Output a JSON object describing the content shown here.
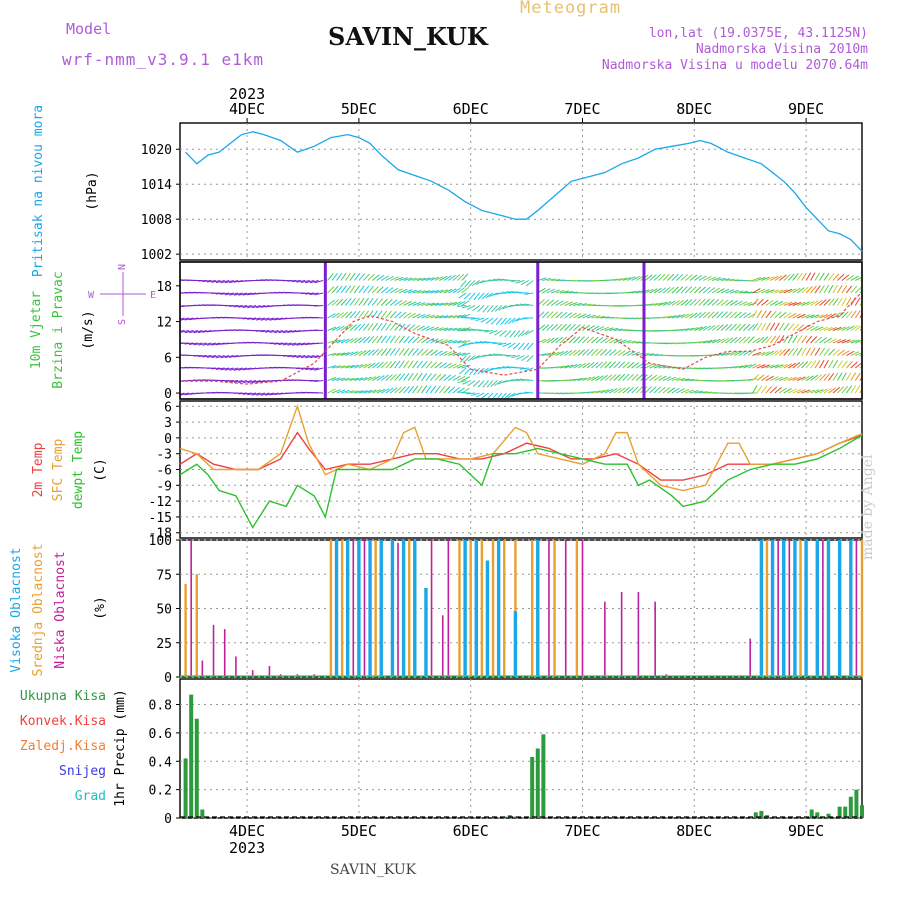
{
  "header": {
    "model_label": "Model",
    "model_name": "wrf-nmm_v3.9.1  e1km",
    "station": "SAVIN_KUK",
    "title": "Meteogram",
    "coords": "lon,lat (19.0375E, 43.1125N)",
    "elevation": "Nadmorska Visina 2010m",
    "model_elevation": "Nadmorska Visina u modelu 2070.64m"
  },
  "footer": {
    "station": "SAVIN_KUK",
    "watermark": "made by Angel"
  },
  "colors": {
    "pressure": "#1aa7e8",
    "wind_label": "#3ec23e",
    "temp2m": "#ef4040",
    "sfc_temp": "#e8a030",
    "dewpt": "#2ec02e",
    "high_cloud": "#1aa7e8",
    "mid_cloud": "#e8a030",
    "low_cloud": "#c0209a",
    "total_precip": "#2e9a3e",
    "conv_precip": "#ef4040",
    "frozen_precip": "#f08030",
    "snow": "#3a3ae0",
    "hail": "#20c0c0",
    "wind_purple": "#7a1fd0",
    "text_purple": "#b05ad8"
  },
  "chart_data": [
    {
      "type": "line",
      "panel": "pressure",
      "title_labels": [
        "Pritisak na nivou mora",
        "(hPa)"
      ],
      "x_ticks_top": [
        "4DEC",
        "5DEC",
        "6DEC",
        "7DEC",
        "8DEC",
        "9DEC"
      ],
      "year": "2023",
      "xlim": [
        -0.6,
        5.5
      ],
      "ylim": [
        1001,
        1024.5
      ],
      "yticks": [
        1002,
        1008,
        1014,
        1020
      ],
      "grid": true,
      "series": [
        {
          "x": [
            -0.55,
            -0.45,
            -0.35,
            -0.25,
            -0.15,
            -0.05,
            0.05,
            0.15,
            0.3,
            0.45,
            0.6,
            0.75,
            0.9,
            1.0,
            1.1,
            1.2,
            1.35,
            1.5,
            1.65,
            1.8,
            1.95,
            2.1,
            2.2,
            2.3,
            2.4,
            2.5,
            2.6,
            2.75,
            2.9,
            3.0,
            3.1,
            3.2,
            3.35,
            3.5,
            3.65,
            3.8,
            3.95,
            4.05,
            4.15,
            4.3,
            4.45,
            4.6,
            4.7,
            4.8,
            4.9,
            5.0,
            5.1,
            5.2,
            5.3,
            5.4,
            5.5
          ],
          "y": [
            1019.5,
            1017.5,
            1019.0,
            1019.5,
            1021.0,
            1022.5,
            1023.0,
            1022.5,
            1021.5,
            1019.5,
            1020.5,
            1022.0,
            1022.5,
            1022.0,
            1021.0,
            1019.0,
            1016.5,
            1015.5,
            1014.5,
            1013.0,
            1011.0,
            1009.5,
            1009.0,
            1008.5,
            1008.0,
            1008.0,
            1009.5,
            1012.0,
            1014.5,
            1015.0,
            1015.5,
            1016.0,
            1017.5,
            1018.5,
            1020.0,
            1020.5,
            1021.0,
            1021.5,
            1021.0,
            1019.5,
            1018.5,
            1017.5,
            1016.0,
            1014.5,
            1012.5,
            1010.0,
            1008.0,
            1006.0,
            1005.5,
            1004.5,
            1002.5
          ]
        }
      ]
    },
    {
      "type": "line",
      "panel": "wind",
      "title_labels": [
        "10m Vjetar",
        "Brzina i Pravac",
        "(m/s)"
      ],
      "compass": [
        "N",
        "W",
        "E",
        "S"
      ],
      "ylim": [
        -1,
        22
      ],
      "yticks": [
        0,
        6,
        12,
        18
      ],
      "grid": true,
      "series": [
        {
          "name": "speed",
          "x": [
            -0.6,
            -0.3,
            0,
            0.3,
            0.6,
            0.8,
            0.95,
            1.1,
            1.3,
            1.5,
            1.8,
            2.0,
            2.3,
            2.6,
            2.8,
            3.0,
            3.3,
            3.6,
            3.9,
            4.1,
            4.3,
            4.5,
            4.7,
            4.9,
            5.1,
            5.3,
            5.5
          ],
          "y": [
            2,
            2,
            1.5,
            2,
            5,
            9,
            12,
            13,
            12,
            10,
            8,
            4,
            3,
            4,
            8,
            11,
            9,
            5,
            4,
            6,
            7,
            7,
            8,
            10,
            12,
            13,
            17
          ]
        }
      ]
    },
    {
      "type": "line",
      "panel": "temperature",
      "title_labels": [
        "2m Temp",
        "SFC Temp",
        "dewpt Temp",
        "(C)"
      ],
      "ylim": [
        -19,
        7
      ],
      "yticks": [
        6,
        3,
        0,
        -3,
        -6,
        -9,
        -12,
        -15,
        -18
      ],
      "grid": true,
      "series": [
        {
          "name": "2m Temp",
          "x": [
            -0.6,
            -0.45,
            -0.3,
            -0.1,
            0.1,
            0.3,
            0.45,
            0.55,
            0.7,
            0.9,
            1.1,
            1.3,
            1.5,
            1.7,
            1.9,
            2.1,
            2.3,
            2.5,
            2.7,
            2.9,
            3.1,
            3.3,
            3.5,
            3.7,
            3.9,
            4.1,
            4.3,
            4.5,
            4.7,
            4.9,
            5.1,
            5.3,
            5.5
          ],
          "y": [
            -5,
            -3,
            -5,
            -6,
            -6,
            -4,
            1,
            -2,
            -6,
            -5,
            -5,
            -4,
            -3,
            -3,
            -4,
            -4,
            -3,
            -1,
            -2,
            -4,
            -4,
            -3,
            -5,
            -8,
            -8,
            -7,
            -5,
            -5,
            -5,
            -4,
            -3,
            -1,
            0.5
          ]
        },
        {
          "name": "SFC Temp",
          "x": [
            -0.6,
            -0.45,
            -0.3,
            -0.1,
            0.1,
            0.3,
            0.45,
            0.55,
            0.7,
            0.9,
            1.1,
            1.3,
            1.4,
            1.5,
            1.6,
            1.8,
            2.0,
            2.2,
            2.4,
            2.5,
            2.6,
            2.8,
            3.0,
            3.2,
            3.3,
            3.4,
            3.5,
            3.7,
            3.9,
            4.1,
            4.3,
            4.4,
            4.5,
            4.7,
            4.9,
            5.1,
            5.3,
            5.5
          ],
          "y": [
            -2,
            -3,
            -6,
            -6,
            -6,
            -3,
            6,
            -1,
            -7,
            -5,
            -6,
            -4,
            1,
            2,
            -4,
            -4,
            -4,
            -3,
            2,
            1,
            -3,
            -4,
            -5,
            -3,
            1,
            1,
            -5,
            -9,
            -10,
            -9,
            -1,
            -1,
            -5,
            -5,
            -4,
            -3,
            -1,
            0.8
          ]
        },
        {
          "name": "dewpt Temp",
          "x": [
            -0.6,
            -0.45,
            -0.35,
            -0.25,
            -0.1,
            0.0,
            0.05,
            0.2,
            0.35,
            0.45,
            0.6,
            0.7,
            0.8,
            0.95,
            1.1,
            1.3,
            1.5,
            1.7,
            1.9,
            2.0,
            2.1,
            2.2,
            2.4,
            2.6,
            2.8,
            3.0,
            3.2,
            3.4,
            3.5,
            3.6,
            3.8,
            3.9,
            4.1,
            4.3,
            4.5,
            4.7,
            4.9,
            5.1,
            5.3,
            5.5
          ],
          "y": [
            -7,
            -5,
            -7,
            -10,
            -11,
            -15,
            -17,
            -12,
            -13,
            -9,
            -11,
            -15,
            -6,
            -6,
            -6,
            -6,
            -4,
            -4,
            -5,
            -7,
            -9,
            -3,
            -3,
            -2,
            -3,
            -4,
            -5,
            -5,
            -9,
            -8,
            -11,
            -13,
            -12,
            -8,
            -6,
            -5,
            -5,
            -4,
            -2,
            0.5
          ]
        }
      ]
    },
    {
      "type": "bar",
      "panel": "clouds",
      "title_labels": [
        "Visoka Oblacnost",
        "Srednja Oblacnost",
        "Niska Oblacnost",
        "(%)"
      ],
      "ylim": [
        0,
        100
      ],
      "yticks": [
        0,
        25,
        50,
        75,
        100
      ],
      "grid": true,
      "series": [
        {
          "name": "Niska Oblacnost",
          "x": [
            -0.5,
            -0.4,
            -0.3,
            -0.2,
            -0.1,
            0.05,
            0.2,
            0.3,
            0.45,
            0.6,
            0.75,
            0.85,
            0.95,
            1.05,
            1.2,
            1.35,
            1.5,
            1.65,
            1.75,
            1.8,
            1.9,
            2.05,
            2.2,
            2.4,
            2.55,
            2.7,
            2.85,
            3.0,
            3.2,
            3.35,
            3.5,
            3.65,
            3.75,
            4.5,
            4.6,
            4.75,
            4.85,
            5.0,
            5.15,
            5.3,
            5.45
          ],
          "y": [
            100,
            12,
            38,
            35,
            15,
            5,
            8,
            2,
            2,
            2,
            8,
            100,
            100,
            100,
            100,
            98,
            95,
            100,
            45,
            100,
            15,
            100,
            100,
            100,
            100,
            100,
            100,
            100,
            55,
            62,
            62,
            55,
            2,
            28,
            100,
            100,
            100,
            100,
            100,
            100,
            100
          ]
        },
        {
          "name": "Srednja Oblacnost",
          "x": [
            -0.55,
            -0.45,
            0.75,
            0.85,
            1.0,
            1.15,
            1.3,
            1.45,
            1.9,
            2.0,
            2.1,
            2.2,
            2.3,
            2.4,
            2.55,
            2.75,
            2.95,
            4.65,
            4.8,
            4.95,
            5.1,
            5.3,
            5.5
          ],
          "y": [
            68,
            75,
            100,
            100,
            100,
            100,
            100,
            100,
            100,
            100,
            100,
            100,
            100,
            100,
            100,
            100,
            100,
            100,
            100,
            100,
            100,
            100,
            100
          ]
        },
        {
          "name": "Visoka Oblacnost",
          "x": [
            0.8,
            0.9,
            1.0,
            1.1,
            1.2,
            1.3,
            1.4,
            1.5,
            1.6,
            1.95,
            2.05,
            2.15,
            2.25,
            2.4,
            2.6,
            4.6,
            4.7,
            4.8,
            4.9,
            5.0,
            5.1,
            5.2,
            5.3,
            5.4
          ],
          "y": [
            100,
            100,
            100,
            100,
            100,
            100,
            100,
            100,
            65,
            100,
            100,
            85,
            100,
            48,
            100,
            100,
            100,
            100,
            100,
            100,
            100,
            100,
            100,
            100
          ]
        }
      ]
    },
    {
      "type": "bar",
      "panel": "precip",
      "title_labels": [
        "1hr Precip (mm)"
      ],
      "legend": [
        "Ukupna Kisa",
        "Konvek.Kisa",
        "Zaledj.Kisa",
        "Snijeg",
        "Grad"
      ],
      "x_ticks_bottom": [
        "4DEC",
        "5DEC",
        "6DEC",
        "7DEC",
        "8DEC",
        "9DEC"
      ],
      "year": "2023",
      "ylim": [
        0,
        0.98
      ],
      "yticks": [
        0,
        0.2,
        0.4,
        0.6,
        0.8
      ],
      "grid": true,
      "series": [
        {
          "name": "Ukupna Kisa",
          "x": [
            -0.55,
            -0.5,
            -0.45,
            -0.4,
            2.3,
            2.35,
            2.4,
            2.55,
            2.6,
            2.65,
            4.55,
            4.6,
            4.65,
            5.05,
            5.1,
            5.2,
            5.3,
            5.35,
            5.4,
            5.45,
            5.5
          ],
          "y": [
            0.42,
            0.87,
            0.7,
            0.06,
            0.01,
            0.02,
            0.01,
            0.43,
            0.49,
            0.59,
            0.04,
            0.05,
            0.02,
            0.06,
            0.04,
            0.03,
            0.08,
            0.08,
            0.15,
            0.2,
            0.09
          ]
        }
      ]
    }
  ]
}
